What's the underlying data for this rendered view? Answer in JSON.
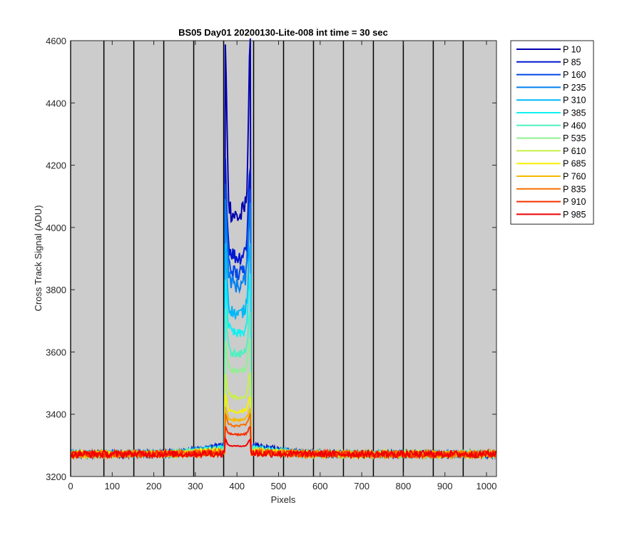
{
  "chart_data": {
    "type": "line",
    "title": "BS05 Day01 20200130-Lite-008 int time = 30 sec",
    "xlabel": "Pixels",
    "ylabel": "Cross Track Signal (ADU)",
    "xlim": [
      0,
      1024
    ],
    "ylim": [
      3200,
      4600
    ],
    "xticks": [
      0,
      100,
      200,
      300,
      400,
      500,
      600,
      700,
      800,
      900,
      1000
    ],
    "yticks": [
      3200,
      3400,
      3600,
      3800,
      4000,
      4200,
      4400,
      4600
    ],
    "plot_background": "#cccccc",
    "vertical_markers": [
      0,
      80,
      152,
      224,
      296,
      368,
      440,
      512,
      584,
      656,
      728,
      800,
      872,
      944
    ],
    "legend_position": "outside-right",
    "series": [
      {
        "name": "P 10",
        "color": "#0000b0",
        "baseline": 3272,
        "side": 3300,
        "peak": 4570,
        "dip": 4100
      },
      {
        "name": "P 85",
        "color": "#0018d0",
        "baseline": 3272,
        "side": 3298,
        "peak": 4200,
        "dip": 3960
      },
      {
        "name": "P 160",
        "color": "#0048e8",
        "baseline": 3272,
        "side": 3296,
        "peak": 4140,
        "dip": 3900
      },
      {
        "name": "P 235",
        "color": "#0080f0",
        "baseline": 3272,
        "side": 3294,
        "peak": 4080,
        "dip": 3860
      },
      {
        "name": "P 310",
        "color": "#00b8f8",
        "baseline": 3272,
        "side": 3292,
        "peak": 3960,
        "dip": 3760
      },
      {
        "name": "P 385",
        "color": "#10f0f0",
        "baseline": 3272,
        "side": 3290,
        "peak": 3840,
        "dip": 3690
      },
      {
        "name": "P 460",
        "color": "#50f0c0",
        "baseline": 3272,
        "side": 3288,
        "peak": 3740,
        "dip": 3620
      },
      {
        "name": "P 535",
        "color": "#90f090",
        "baseline": 3272,
        "side": 3286,
        "peak": 3640,
        "dip": 3560
      },
      {
        "name": "P 610",
        "color": "#c8f048",
        "baseline": 3272,
        "side": 3284,
        "peak": 3530,
        "dip": 3470
      },
      {
        "name": "P 685",
        "color": "#f8f000",
        "baseline": 3272,
        "side": 3282,
        "peak": 3460,
        "dip": 3420
      },
      {
        "name": "P 760",
        "color": "#f8b800",
        "baseline": 3272,
        "side": 3280,
        "peak": 3420,
        "dip": 3390
      },
      {
        "name": "P 835",
        "color": "#f87000",
        "baseline": 3272,
        "side": 3278,
        "peak": 3400,
        "dip": 3370
      },
      {
        "name": "P 910",
        "color": "#f83000",
        "baseline": 3272,
        "side": 3276,
        "peak": 3360,
        "dip": 3340
      },
      {
        "name": "P 985",
        "color": "#f00000",
        "baseline": 3272,
        "side": 3274,
        "peak": 3320,
        "dip": 3300
      }
    ],
    "spot_range": [
      372,
      432
    ]
  }
}
